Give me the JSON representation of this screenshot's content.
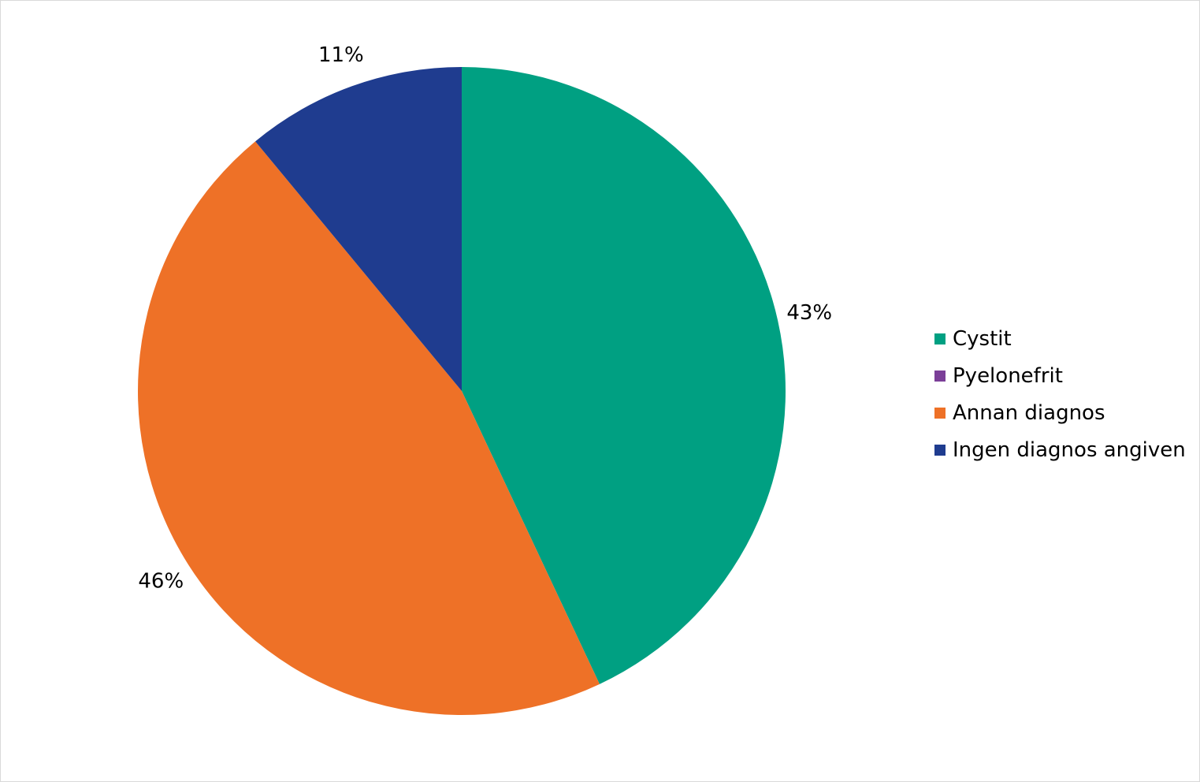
{
  "chart_data": {
    "type": "pie",
    "categories": [
      "Cystit",
      "Pyelonefrit",
      "Annan diagnos",
      "Ingen diagnos angiven"
    ],
    "values": [
      43,
      0,
      46,
      11
    ],
    "data_labels": [
      "43%",
      "",
      "46%",
      "11%"
    ],
    "colors": [
      "#00a082",
      "#7b3f98",
      "#ee7127",
      "#1f3c8f"
    ],
    "start_angle": "12 o'clock",
    "direction": "clockwise",
    "legend_position": "right"
  }
}
